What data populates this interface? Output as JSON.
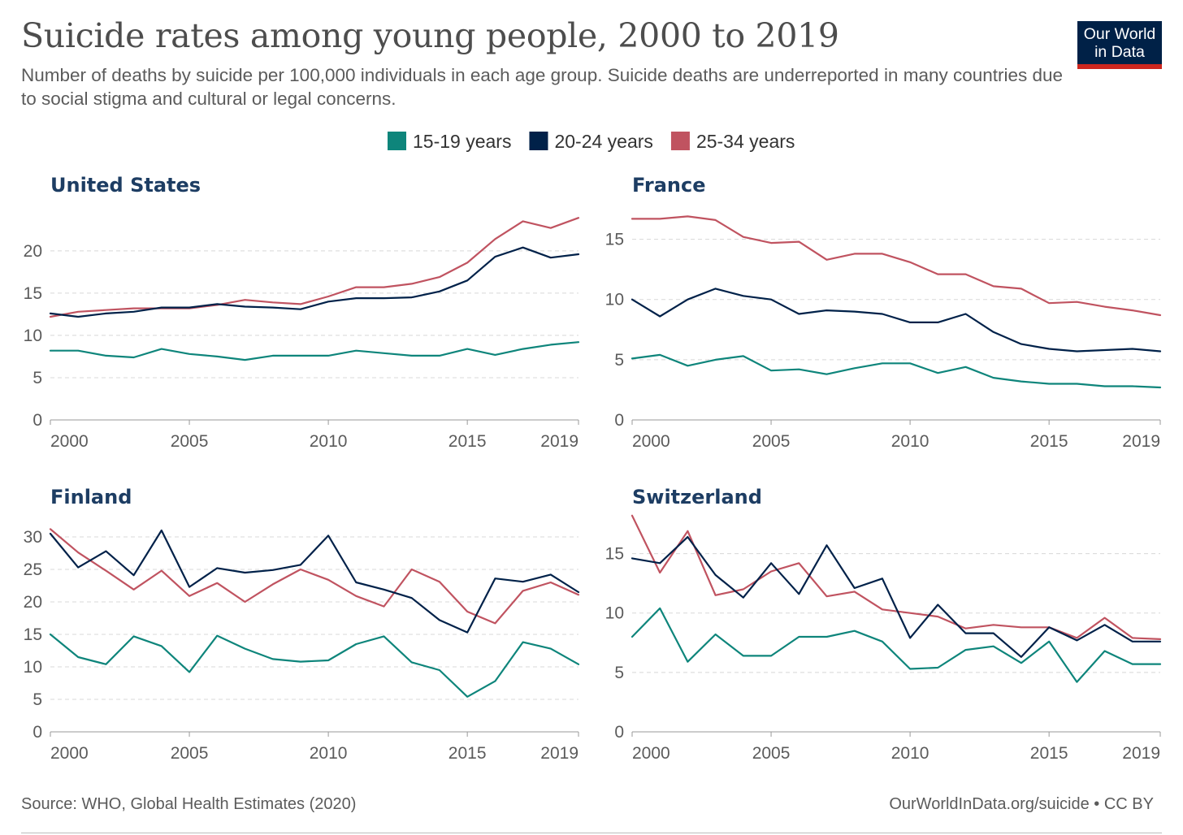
{
  "header": {
    "title": "Suicide rates among young people, 2000 to 2019",
    "subtitle": "Number of deaths by suicide per 100,000 individuals in each age group. Suicide deaths are underreported in many countries due to social stigma and cultural or legal concerns."
  },
  "logo": {
    "line1": "Our World",
    "line2": "in Data"
  },
  "footer": {
    "source": "Source: WHO, Global Health Estimates (2020)",
    "credit": "OurWorldInData.org/suicide • CC BY"
  },
  "colors": {
    "15-19 years": "#0e857b",
    "20-24 years": "#002149",
    "25-34 years": "#c05360"
  },
  "chart_data": [
    {
      "type": "line",
      "title": "United States",
      "x": [
        2000,
        2001,
        2002,
        2003,
        2004,
        2005,
        2006,
        2007,
        2008,
        2009,
        2010,
        2011,
        2012,
        2013,
        2014,
        2015,
        2016,
        2017,
        2018,
        2019
      ],
      "xticks": [
        2000,
        2005,
        2010,
        2015,
        2019
      ],
      "yticks": [
        0,
        5,
        10,
        15,
        20
      ],
      "ylim": [
        0,
        24.5
      ],
      "grid": true,
      "legend": "top",
      "series": [
        {
          "name": "15-19 years",
          "values": [
            8.2,
            8.2,
            7.6,
            7.4,
            8.4,
            7.8,
            7.5,
            7.1,
            7.6,
            7.6,
            7.6,
            8.2,
            7.9,
            7.6,
            7.6,
            8.4,
            7.7,
            8.4,
            8.9,
            9.2
          ]
        },
        {
          "name": "20-24 years",
          "values": [
            12.6,
            12.2,
            12.6,
            12.8,
            13.3,
            13.3,
            13.7,
            13.4,
            13.3,
            13.1,
            14.0,
            14.4,
            14.4,
            14.5,
            15.2,
            16.5,
            19.3,
            20.4,
            19.2,
            19.6
          ]
        },
        {
          "name": "25-34 years",
          "values": [
            12.2,
            12.8,
            13.0,
            13.2,
            13.2,
            13.2,
            13.6,
            14.2,
            13.9,
            13.7,
            14.6,
            15.7,
            15.7,
            16.1,
            16.9,
            18.6,
            21.4,
            23.5,
            22.7,
            23.9
          ]
        }
      ]
    },
    {
      "type": "line",
      "title": "France",
      "x": [
        2000,
        2001,
        2002,
        2003,
        2004,
        2005,
        2006,
        2007,
        2008,
        2009,
        2010,
        2011,
        2012,
        2013,
        2014,
        2015,
        2016,
        2017,
        2018,
        2019
      ],
      "xticks": [
        2000,
        2005,
        2010,
        2015,
        2019
      ],
      "yticks": [
        0,
        5,
        10,
        15
      ],
      "ylim": [
        0,
        17.2
      ],
      "grid": true,
      "series": [
        {
          "name": "15-19 years",
          "values": [
            5.1,
            5.4,
            4.5,
            5.0,
            5.3,
            4.1,
            4.2,
            3.8,
            4.3,
            4.7,
            4.7,
            3.9,
            4.4,
            3.5,
            3.2,
            3.0,
            3.0,
            2.8,
            2.8,
            2.7
          ]
        },
        {
          "name": "20-24 years",
          "values": [
            10.0,
            8.6,
            10.0,
            10.9,
            10.3,
            10.0,
            8.8,
            9.1,
            9.0,
            8.8,
            8.1,
            8.1,
            8.8,
            7.3,
            6.3,
            5.9,
            5.7,
            5.8,
            5.9,
            5.7
          ]
        },
        {
          "name": "25-34 years",
          "values": [
            16.7,
            16.7,
            16.9,
            16.6,
            15.2,
            14.7,
            14.8,
            13.3,
            13.8,
            13.8,
            13.1,
            12.1,
            12.1,
            11.1,
            10.9,
            9.7,
            9.8,
            9.4,
            9.1,
            8.7
          ]
        }
      ]
    },
    {
      "type": "line",
      "title": "Finland",
      "x": [
        2000,
        2001,
        2002,
        2003,
        2004,
        2005,
        2006,
        2007,
        2008,
        2009,
        2010,
        2011,
        2012,
        2013,
        2014,
        2015,
        2016,
        2017,
        2018,
        2019
      ],
      "xticks": [
        2000,
        2005,
        2010,
        2015,
        2019
      ],
      "yticks": [
        0,
        5,
        10,
        15,
        20,
        25,
        30
      ],
      "ylim": [
        0,
        32
      ],
      "grid": true,
      "series": [
        {
          "name": "15-19 years",
          "values": [
            15.0,
            11.5,
            10.4,
            14.7,
            13.2,
            9.2,
            14.8,
            12.8,
            11.2,
            10.8,
            11.0,
            13.5,
            14.7,
            10.7,
            9.5,
            5.4,
            7.8,
            13.8,
            12.8,
            10.4
          ]
        },
        {
          "name": "20-24 years",
          "values": [
            30.5,
            25.3,
            27.8,
            24.1,
            31.0,
            22.3,
            25.2,
            24.5,
            24.9,
            25.7,
            30.2,
            23.0,
            21.9,
            20.6,
            17.2,
            15.3,
            23.6,
            23.1,
            24.2,
            21.5
          ]
        },
        {
          "name": "25-34 years",
          "values": [
            31.2,
            27.6,
            24.8,
            21.9,
            24.8,
            20.9,
            22.9,
            20.0,
            22.7,
            25.0,
            23.4,
            20.9,
            19.3,
            25.0,
            23.1,
            18.5,
            16.7,
            21.7,
            23.0,
            21.1
          ]
        }
      ]
    },
    {
      "type": "line",
      "title": "Switzerland",
      "x": [
        2000,
        2001,
        2002,
        2003,
        2004,
        2005,
        2006,
        2007,
        2008,
        2009,
        2010,
        2011,
        2012,
        2013,
        2014,
        2015,
        2016,
        2017,
        2018,
        2019
      ],
      "xticks": [
        2000,
        2005,
        2010,
        2015,
        2019
      ],
      "yticks": [
        0,
        5,
        10,
        15
      ],
      "ylim": [
        0,
        17.5
      ],
      "grid": true,
      "series": [
        {
          "name": "15-19 years",
          "values": [
            8.0,
            10.4,
            5.9,
            8.2,
            6.4,
            6.4,
            8.0,
            8.0,
            8.5,
            7.6,
            5.3,
            5.4,
            6.9,
            7.2,
            5.8,
            7.6,
            4.2,
            6.8,
            5.7,
            5.7
          ]
        },
        {
          "name": "20-24 years",
          "values": [
            14.6,
            14.2,
            16.4,
            13.2,
            11.3,
            14.2,
            11.6,
            15.7,
            12.1,
            12.9,
            7.9,
            10.7,
            8.3,
            8.3,
            6.3,
            8.8,
            7.7,
            9.0,
            7.6,
            7.6
          ]
        },
        {
          "name": "25-34 years",
          "values": [
            18.2,
            13.4,
            16.9,
            11.5,
            12.0,
            13.5,
            14.2,
            11.4,
            11.8,
            10.3,
            10.0,
            9.7,
            8.7,
            9.0,
            8.8,
            8.8,
            7.9,
            9.6,
            7.9,
            7.8
          ]
        }
      ]
    }
  ]
}
